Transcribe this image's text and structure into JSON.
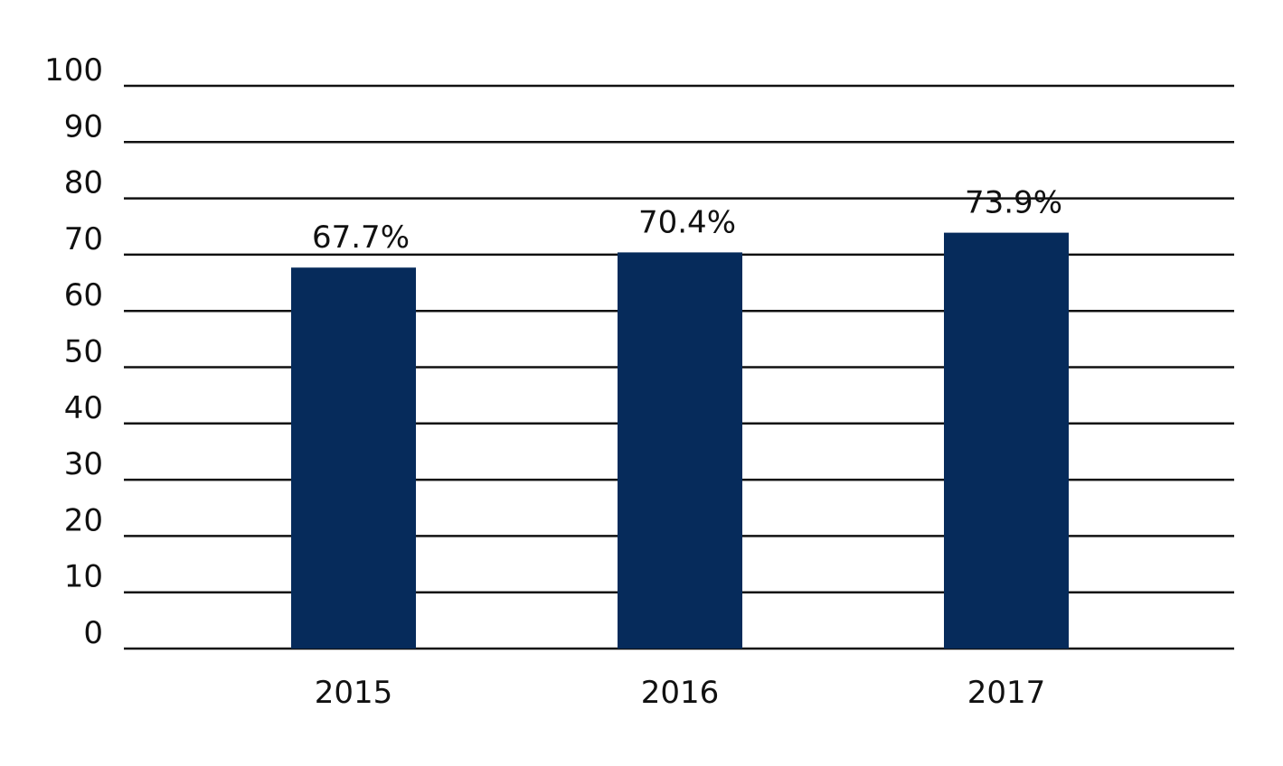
{
  "chart_data": {
    "type": "bar",
    "categories": [
      "2015",
      "2016",
      "2017"
    ],
    "values": [
      67.7,
      70.4,
      73.9
    ],
    "data_labels": [
      "67.7%",
      "70.4%",
      "73.9%"
    ],
    "title": "",
    "xlabel": "",
    "ylabel": "",
    "ylim": [
      0,
      100
    ],
    "yticks": [
      "0",
      "10",
      "20",
      "30",
      "40",
      "50",
      "60",
      "70",
      "80",
      "90",
      "100"
    ],
    "grid": true,
    "legend": "none",
    "bar_color": "#062b5b",
    "axis_color": "#111111"
  }
}
